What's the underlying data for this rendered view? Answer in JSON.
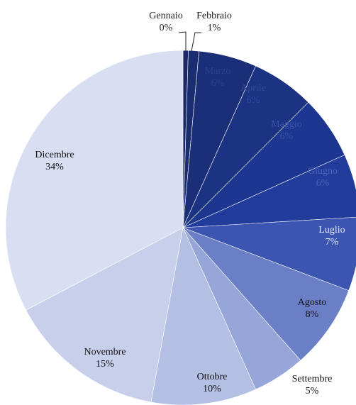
{
  "chart_data": {
    "type": "pie",
    "title": "",
    "unit": "%",
    "legend": "none",
    "slices": [
      {
        "label": "Gennaio",
        "value_label": "0%",
        "value": 0.5,
        "color": "#1b2a66",
        "text_color": "#1f1f1f"
      },
      {
        "label": "Febbraio",
        "value_label": "1%",
        "value": 1,
        "color": "#1a2d70",
        "text_color": "#1f1f1f"
      },
      {
        "label": "Marzo",
        "value_label": "6%",
        "value": 5.5,
        "color": "#1a2f78",
        "text_color": "#2c3f8f"
      },
      {
        "label": "Aprile",
        "value_label": "6%",
        "value": 6,
        "color": "#1c3283",
        "text_color": "#33489a"
      },
      {
        "label": "Maggio",
        "value_label": "6%",
        "value": 6,
        "color": "#1d3690",
        "text_color": "#3a52a8"
      },
      {
        "label": "Giugno",
        "value_label": "6%",
        "value": 6,
        "color": "#223c9c",
        "text_color": "#4d63b5"
      },
      {
        "label": "Luglio",
        "value_label": "7%",
        "value": 7,
        "color": "#3b55b0",
        "text_color": "#e8ecf8"
      },
      {
        "label": "Agosto",
        "value_label": "8%",
        "value": 8,
        "color": "#6a7fc5",
        "text_color": "#141414"
      },
      {
        "label": "Settembre",
        "value_label": "5%",
        "value": 5,
        "color": "#97a6d8",
        "text_color": "#141414"
      },
      {
        "label": "Ottobre",
        "value_label": "10%",
        "value": 10,
        "color": "#b3bfe3",
        "text_color": "#141414"
      },
      {
        "label": "Novembre",
        "value_label": "15%",
        "value": 15,
        "color": "#c7cfeb",
        "text_color": "#141414"
      },
      {
        "label": "Dicembre",
        "value_label": "34%",
        "value": 34,
        "color": "#d9dff3",
        "text_color": "#141414"
      }
    ]
  }
}
